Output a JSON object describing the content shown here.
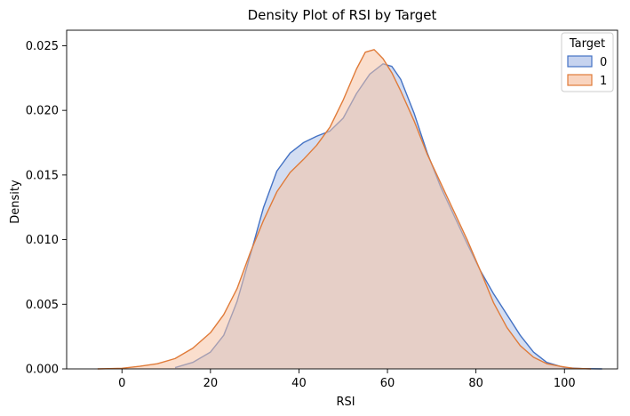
{
  "chart_data": {
    "type": "area",
    "title": "Density Plot of RSI by Target",
    "xlabel": "RSI",
    "ylabel": "Density",
    "xlim": [
      -12.5,
      112
    ],
    "ylim": [
      0,
      0.0262
    ],
    "xticks": [
      {
        "value": 0,
        "label": "0"
      },
      {
        "value": 20,
        "label": "20"
      },
      {
        "value": 40,
        "label": "40"
      },
      {
        "value": 60,
        "label": "60"
      },
      {
        "value": 80,
        "label": "80"
      },
      {
        "value": 100,
        "label": "100"
      }
    ],
    "yticks": [
      {
        "value": 0,
        "label": "0.000"
      },
      {
        "value": 0.005,
        "label": "0.005"
      },
      {
        "value": 0.01,
        "label": "0.010"
      },
      {
        "value": 0.015,
        "label": "0.015"
      },
      {
        "value": 0.02,
        "label": "0.020"
      },
      {
        "value": 0.025,
        "label": "0.025"
      }
    ],
    "grid": false,
    "legend": {
      "title": "Target",
      "position": "top-right"
    },
    "series": [
      {
        "name": "0",
        "line_color": "#4472c4",
        "fill_color": "#aec1e8",
        "fill_opacity": 0.55,
        "x": [
          12,
          16,
          20,
          23,
          26,
          29,
          32,
          35,
          38,
          41,
          44,
          47,
          50,
          53,
          56,
          59,
          61,
          63,
          66,
          69,
          72,
          75,
          78,
          81,
          84,
          87,
          90,
          93,
          96,
          100,
          104,
          108.5
        ],
        "y": [
          0.0001,
          0.0005,
          0.0013,
          0.0026,
          0.0052,
          0.0088,
          0.0125,
          0.0153,
          0.0167,
          0.0175,
          0.018,
          0.0184,
          0.0194,
          0.0213,
          0.0228,
          0.0236,
          0.0234,
          0.0224,
          0.0198,
          0.0167,
          0.0141,
          0.0119,
          0.0097,
          0.0076,
          0.0058,
          0.0042,
          0.0026,
          0.0013,
          0.0005,
          0.0001,
          2e-05,
          0.0
        ]
      },
      {
        "name": "1",
        "line_color": "#e07b39",
        "fill_color": "#f6c2a4",
        "fill_opacity": 0.55,
        "x": [
          -5.5,
          0,
          4,
          8,
          12,
          16,
          20,
          23,
          26,
          29,
          32,
          35,
          38,
          41,
          44,
          47,
          50,
          53,
          55,
          57,
          59,
          61,
          63,
          66,
          69,
          72,
          75,
          78,
          81,
          84,
          87,
          90,
          93,
          96,
          99,
          102,
          106
        ],
        "y": [
          0.0,
          5e-05,
          0.0002,
          0.0004,
          0.0008,
          0.0016,
          0.0028,
          0.0042,
          0.0062,
          0.009,
          0.0115,
          0.0137,
          0.0152,
          0.0162,
          0.0173,
          0.0187,
          0.0208,
          0.0232,
          0.0245,
          0.0247,
          0.024,
          0.0229,
          0.0215,
          0.0192,
          0.0166,
          0.0144,
          0.0122,
          0.01,
          0.0076,
          0.0051,
          0.0032,
          0.0018,
          0.0009,
          0.0004,
          0.0002,
          5e-05,
          0.0
        ]
      }
    ]
  }
}
